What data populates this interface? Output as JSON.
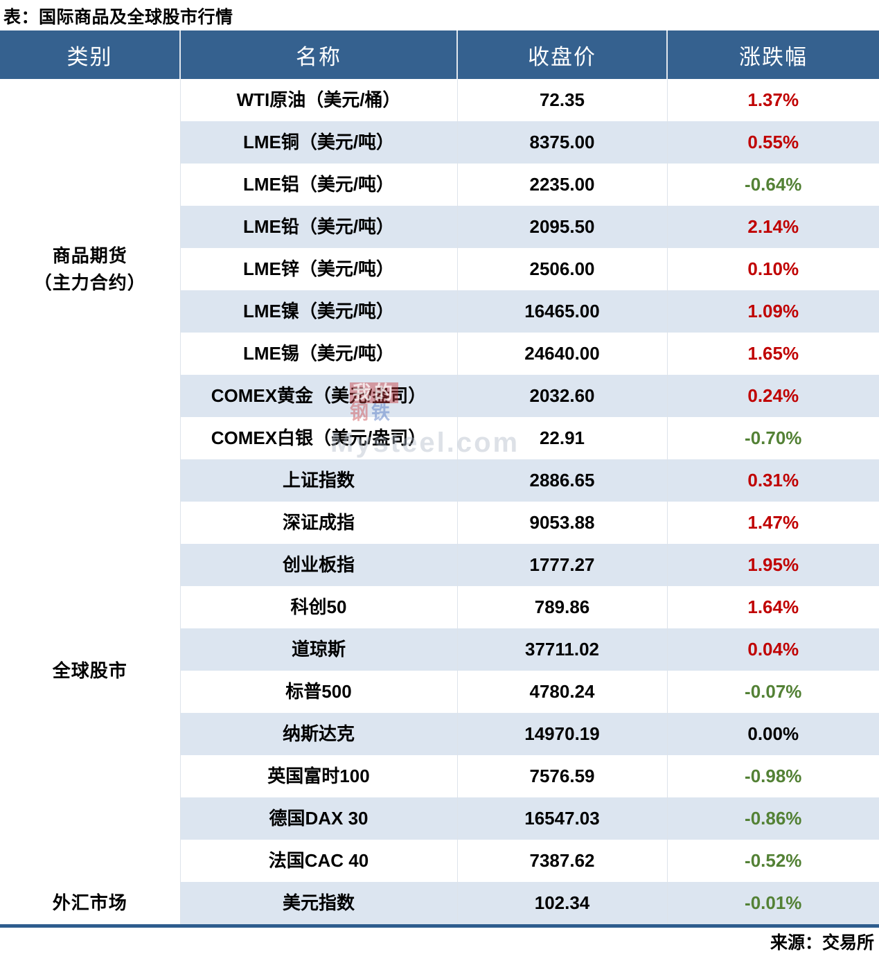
{
  "title": "表：国际商品及全球股市行情",
  "source": "来源：交易所",
  "colors": {
    "header_bg": "#35618F",
    "header_text": "#FFFFFF",
    "band_row": "#DCE5F0",
    "bottom_border": "#2E5D8E",
    "up": "#C00000",
    "down": "#538135",
    "flat": "#000000"
  },
  "watermark": {
    "logo_top": "我的",
    "logo_bottom_left": "钢",
    "logo_bottom_right": "铁",
    "site": "Mysteel.com"
  },
  "chart_data": {
    "type": "table",
    "title": "表：国际商品及全球股市行情",
    "columns": [
      "类别",
      "名称",
      "收盘价",
      "涨跌幅"
    ],
    "source": "来源：交易所",
    "rows": [
      {
        "category": "商品期货\n（主力合约）",
        "category_rowspan": 9,
        "name": "WTI原油（美元/桶）",
        "close": "72.35",
        "change": "1.37%",
        "direction": "up"
      },
      {
        "name": "LME铜（美元/吨）",
        "close": "8375.00",
        "change": "0.55%",
        "direction": "up"
      },
      {
        "name": "LME铝（美元/吨）",
        "close": "2235.00",
        "change": "-0.64%",
        "direction": "down"
      },
      {
        "name": "LME铅（美元/吨）",
        "close": "2095.50",
        "change": "2.14%",
        "direction": "up"
      },
      {
        "name": "LME锌（美元/吨）",
        "close": "2506.00",
        "change": "0.10%",
        "direction": "up"
      },
      {
        "name": "LME镍（美元/吨）",
        "close": "16465.00",
        "change": "1.09%",
        "direction": "up"
      },
      {
        "name": "LME锡（美元/吨）",
        "close": "24640.00",
        "change": "1.65%",
        "direction": "up"
      },
      {
        "name": "COMEX黄金（美元/盎司）",
        "close": "2032.60",
        "change": "0.24%",
        "direction": "up"
      },
      {
        "name": "COMEX白银（美元/盎司）",
        "close": "22.91",
        "change": "-0.70%",
        "direction": "down"
      },
      {
        "category": "全球股市",
        "category_rowspan": 10,
        "name": "上证指数",
        "close": "2886.65",
        "change": "0.31%",
        "direction": "up"
      },
      {
        "name": "深证成指",
        "close": "9053.88",
        "change": "1.47%",
        "direction": "up"
      },
      {
        "name": "创业板指",
        "close": "1777.27",
        "change": "1.95%",
        "direction": "up"
      },
      {
        "name": "科创50",
        "close": "789.86",
        "change": "1.64%",
        "direction": "up"
      },
      {
        "name": "道琼斯",
        "close": "37711.02",
        "change": "0.04%",
        "direction": "up"
      },
      {
        "name": "标普500",
        "close": "4780.24",
        "change": "-0.07%",
        "direction": "down"
      },
      {
        "name": "纳斯达克",
        "close": "14970.19",
        "change": "0.00%",
        "direction": "flat"
      },
      {
        "name": "英国富时100",
        "close": "7576.59",
        "change": "-0.98%",
        "direction": "down"
      },
      {
        "name": "德国DAX 30",
        "close": "16547.03",
        "change": "-0.86%",
        "direction": "down"
      },
      {
        "name": "法国CAC 40",
        "close": "7387.62",
        "change": "-0.52%",
        "direction": "down"
      },
      {
        "category": "外汇市场",
        "category_rowspan": 1,
        "name": "美元指数",
        "close": "102.34",
        "change": "-0.01%",
        "direction": "down"
      }
    ]
  }
}
